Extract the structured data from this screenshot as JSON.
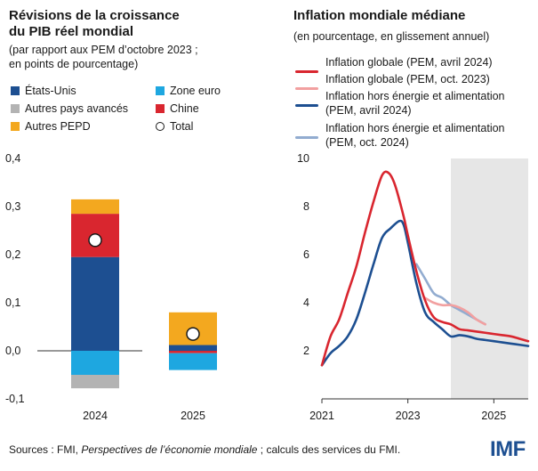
{
  "left": {
    "title_line1": "Révisions de la croissance",
    "title_line2": "du PIB réel mondial",
    "subtitle_line1": "(par rapport aux PEM d’octobre 2023 ;",
    "subtitle_line2": "en points de pourcentage)",
    "legend": {
      "us": "États-Unis",
      "euro": "Zone euro",
      "other_adv": "Autres pays avancés",
      "china": "Chine",
      "other_emde": "Autres PEPD",
      "total": "Total"
    }
  },
  "right": {
    "title": "Inflation mondiale médiane",
    "subtitle": "(en pourcentage, en glissement annuel)",
    "legend": {
      "headline_apr24": "Inflation globale (PEM, avril 2024)",
      "headline_oct23": "Inflation globale (PEM, oct. 2023)",
      "core_apr24_line1": "Inflation hors énergie et alimentation",
      "core_apr24_line2": "(PEM, avril 2024)",
      "core_oct24_line1": "Inflation hors énergie et alimentation",
      "core_oct24_line2": "(PEM, oct. 2024)"
    }
  },
  "footer": {
    "sources_prefix": "Sources : FMI, ",
    "sources_italic": "Perspectives de l’économie mondiale",
    "sources_suffix": " ; calculs des services du FMI.",
    "logo": "IMF"
  },
  "colors": {
    "us": "#1d4f91",
    "euro": "#1ea7e0",
    "other_adv": "#b3b3b3",
    "china": "#d9262f",
    "other_emde": "#f3a81f",
    "headline_apr24": "#d9262f",
    "headline_oct23": "#f2a0a0",
    "core_apr24": "#1d4f91",
    "core_oct24": "#92acd0",
    "forecast_shade": "#e6e6e6"
  },
  "chart_data": [
    {
      "type": "bar",
      "stacked": true,
      "title": "Révisions de la croissance du PIB réel mondial",
      "categories": [
        "2024",
        "2025"
      ],
      "ylim": [
        -0.1,
        0.4
      ],
      "yticks": [
        "0,4",
        "0,3",
        "0,2",
        "0,1",
        "0,0",
        "-0,1"
      ],
      "ytick_values": [
        0.4,
        0.3,
        0.2,
        0.1,
        0.0,
        -0.1
      ],
      "series": [
        {
          "key": "us",
          "name": "États-Unis",
          "values": [
            0.195,
            0.012
          ]
        },
        {
          "key": "china",
          "name": "Chine",
          "values": [
            0.09,
            -0.005
          ]
        },
        {
          "key": "other_emde",
          "name": "Autres PEPD",
          "values": [
            0.03,
            0.068
          ]
        },
        {
          "key": "euro",
          "name": "Zone euro",
          "values": [
            -0.05,
            -0.035
          ]
        },
        {
          "key": "other_adv",
          "name": "Autres pays avancés",
          "values": [
            -0.028,
            0.0
          ]
        }
      ],
      "totals": [
        0.23,
        0.035
      ]
    },
    {
      "type": "line",
      "title": "Inflation mondiale médiane",
      "xlim": [
        2021.0,
        2025.8
      ],
      "ylim": [
        0,
        10
      ],
      "xticks": [
        "2021",
        "2023",
        "2025"
      ],
      "xtick_values": [
        2021,
        2023,
        2025
      ],
      "yticks": [
        "10",
        "8",
        "6",
        "4",
        "2"
      ],
      "ytick_values": [
        10,
        8,
        6,
        4,
        2
      ],
      "forecast_start": 2024.0,
      "series": [
        {
          "key": "headline_apr24",
          "name": "Inflation globale (PEM, avril 2024)",
          "x": [
            2021.0,
            2021.2,
            2021.4,
            2021.6,
            2021.8,
            2022.0,
            2022.2,
            2022.4,
            2022.55,
            2022.7,
            2022.9,
            2023.0,
            2023.2,
            2023.4,
            2023.6,
            2023.8,
            2024.0,
            2024.2,
            2024.4,
            2024.6,
            2024.8,
            2025.0,
            2025.2,
            2025.4,
            2025.6,
            2025.8
          ],
          "values": [
            1.4,
            2.6,
            3.3,
            4.4,
            5.5,
            6.9,
            8.2,
            9.3,
            9.4,
            8.9,
            7.6,
            6.8,
            5.3,
            4.1,
            3.4,
            3.2,
            3.1,
            2.9,
            2.85,
            2.8,
            2.75,
            2.7,
            2.65,
            2.6,
            2.5,
            2.4
          ]
        },
        {
          "key": "headline_oct23",
          "name": "Inflation globale (PEM, oct. 2023)",
          "x": [
            2023.4,
            2023.6,
            2023.8,
            2024.0,
            2024.2,
            2024.4,
            2024.6,
            2024.8
          ],
          "values": [
            4.2,
            4.0,
            3.9,
            3.9,
            3.8,
            3.6,
            3.3,
            3.1
          ]
        },
        {
          "key": "core_apr24",
          "name": "Inflation hors énergie et alimentation (PEM, avril 2024)",
          "x": [
            2021.0,
            2021.2,
            2021.4,
            2021.6,
            2021.8,
            2022.0,
            2022.2,
            2022.4,
            2022.6,
            2022.8,
            2022.9,
            2023.0,
            2023.2,
            2023.4,
            2023.6,
            2023.8,
            2024.0,
            2024.2,
            2024.4,
            2024.6,
            2024.8,
            2025.0,
            2025.2,
            2025.4,
            2025.6,
            2025.8
          ],
          "values": [
            1.4,
            1.9,
            2.2,
            2.6,
            3.3,
            4.4,
            5.6,
            6.7,
            7.1,
            7.4,
            7.25,
            6.5,
            4.8,
            3.6,
            3.2,
            2.9,
            2.6,
            2.65,
            2.6,
            2.5,
            2.45,
            2.4,
            2.35,
            2.3,
            2.25,
            2.2
          ]
        },
        {
          "key": "core_oct24",
          "name": "Inflation hors énergie et alimentation (PEM, oct. 2024)",
          "x": [
            2023.2,
            2023.4,
            2023.6,
            2023.8,
            2024.0,
            2024.2,
            2024.4,
            2024.6,
            2024.8
          ],
          "values": [
            5.6,
            5.0,
            4.4,
            4.2,
            3.9,
            3.7,
            3.5,
            3.3,
            3.1
          ]
        }
      ]
    }
  ]
}
